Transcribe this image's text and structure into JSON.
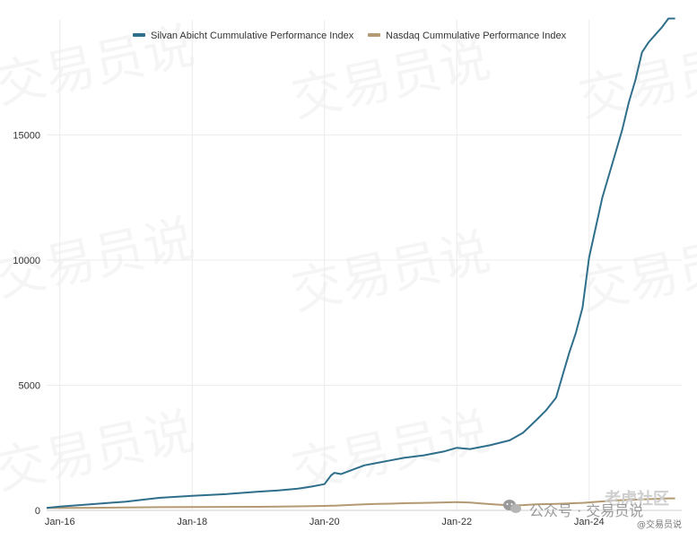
{
  "chart_data": {
    "type": "line",
    "x_tick_labels": [
      "Jan-16",
      "Jan-18",
      "Jan-20",
      "Jan-22",
      "Jan-24"
    ],
    "x_ticks_decimal_year": [
      2016,
      2018,
      2020,
      2022,
      2024
    ],
    "x_range": [
      2015.8,
      2025.4
    ],
    "ylim": [
      0,
      19600
    ],
    "yticks": [
      0,
      5000,
      10000,
      15000
    ],
    "grid": true,
    "legend_position": "top-center",
    "x_values": [
      2015.8,
      2016.0,
      2016.5,
      2017.0,
      2017.5,
      2018.0,
      2018.5,
      2019.0,
      2019.3,
      2019.6,
      2019.8,
      2020.0,
      2020.1,
      2020.15,
      2020.25,
      2020.4,
      2020.6,
      2020.8,
      2021.0,
      2021.2,
      2021.5,
      2021.8,
      2022.0,
      2022.2,
      2022.5,
      2022.8,
      2023.0,
      2023.2,
      2023.35,
      2023.5,
      2023.6,
      2023.7,
      2023.8,
      2023.9,
      2024.0,
      2024.1,
      2024.2,
      2024.3,
      2024.4,
      2024.5,
      2024.6,
      2024.7,
      2024.8,
      2024.9,
      2025.0,
      2025.1,
      2025.2,
      2025.3
    ],
    "series": [
      {
        "name": "Silvan Abicht Cummulative Performance Index",
        "color": "#2f6f8c",
        "values": [
          100,
          150,
          250,
          350,
          500,
          580,
          650,
          750,
          800,
          870,
          950,
          1050,
          1400,
          1500,
          1450,
          1600,
          1800,
          1900,
          2000,
          2100,
          2200,
          2350,
          2500,
          2450,
          2600,
          2800,
          3100,
          3600,
          4000,
          4500,
          5400,
          6300,
          7100,
          8100,
          10100,
          11300,
          12500,
          13400,
          14300,
          15200,
          16300,
          17200,
          18300,
          18700,
          19000,
          19300,
          19650,
          19650
        ]
      },
      {
        "name": "Nasdaq Cummulative Performance Index",
        "color": "#b39a72",
        "values": [
          100,
          100,
          105,
          120,
          130,
          135,
          140,
          145,
          150,
          160,
          170,
          180,
          185,
          190,
          200,
          220,
          240,
          260,
          270,
          285,
          300,
          320,
          330,
          310,
          250,
          200,
          210,
          240,
          250,
          260,
          270,
          280,
          290,
          300,
          320,
          340,
          360,
          380,
          400,
          410,
          420,
          430,
          440,
          450,
          460,
          470,
          480,
          480
        ]
      }
    ]
  },
  "watermark": {
    "text": "交易员说"
  },
  "footer": {
    "line1": "公众号 · 交易员说",
    "line2": "@交易员说",
    "badge": "老虎社区",
    "icon": "wechat-icon"
  }
}
